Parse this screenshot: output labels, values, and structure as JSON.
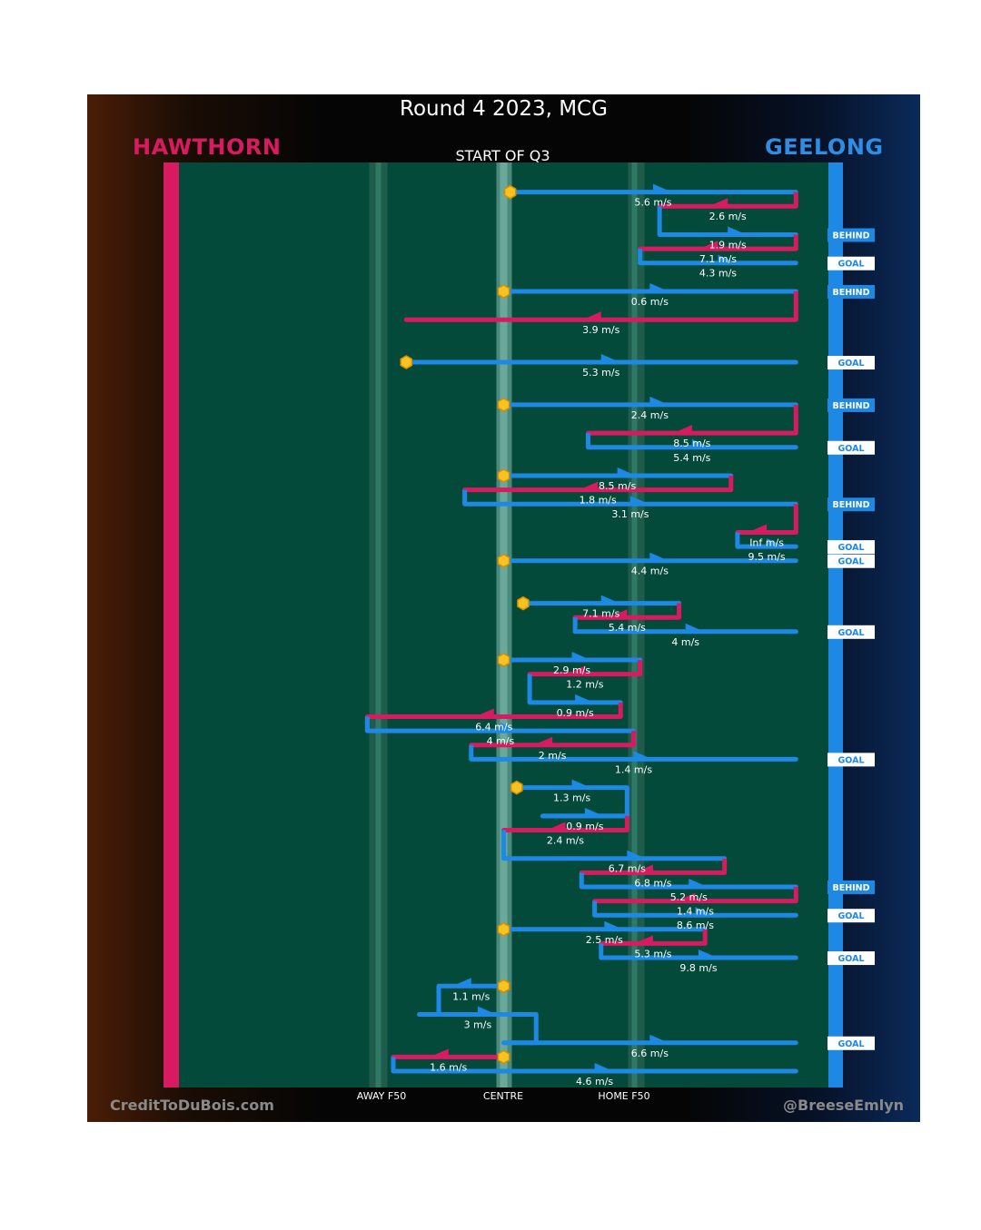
{
  "title": "Round 4 2023, MCG",
  "subtitle": "START OF Q3",
  "teams": {
    "home": "HAWTHORN",
    "away": "GEELONG"
  },
  "colors": {
    "home": "#d81b60",
    "away": "#1e88e5",
    "ball": "#f6c320",
    "field": "#044a3b"
  },
  "zone_labels": {
    "away_f50": "AWAY F50",
    "centre": "CENTRE",
    "home_f50": "HOME F50"
  },
  "credits": {
    "left": "CreditToDuBois.com",
    "right": "@BreeseEmlyn"
  },
  "chart_data": {
    "type": "chain",
    "x_unit": "field position (0 = Hawthorn end, 100 = Geelong end)",
    "markers": {
      "away_f50": 30,
      "centre": 50,
      "home_f50": 70
    },
    "chains": [
      {
        "team": "away",
        "start": 51,
        "end": 95,
        "speed": "5.6 m/s",
        "start_mark": true,
        "y": 10
      },
      {
        "team": "home",
        "start": 95,
        "end": 74,
        "speed": "2.6 m/s",
        "y": 20
      },
      {
        "team": "away",
        "start": 74,
        "end": 95,
        "speed": "1.9 m/s",
        "result": "BEHIND",
        "y": 40
      },
      {
        "team": "home",
        "start": 95,
        "end": 71,
        "speed": "7.1 m/s",
        "y": 50
      },
      {
        "team": "away",
        "start": 71,
        "end": 95,
        "speed": "4.3 m/s",
        "result": "GOAL",
        "y": 60
      },
      {
        "team": "away",
        "start": 50,
        "end": 95,
        "speed": "0.6 m/s",
        "result": "BEHIND",
        "start_mark": true,
        "y": 80
      },
      {
        "team": "home",
        "start": 95,
        "end": 35,
        "speed": "3.9 m/s",
        "y": 100
      },
      {
        "team": "away",
        "start": 35,
        "end": 95,
        "speed": "5.3 m/s",
        "result": "GOAL",
        "start_mark": true,
        "y": 130
      },
      {
        "team": "away",
        "start": 50,
        "end": 95,
        "speed": "2.4 m/s",
        "result": "BEHIND",
        "start_mark": true,
        "y": 160
      },
      {
        "team": "home",
        "start": 95,
        "end": 63,
        "speed": "8.5 m/s",
        "y": 180
      },
      {
        "team": "away",
        "start": 63,
        "end": 95,
        "speed": "5.4 m/s",
        "result": "GOAL",
        "y": 190
      },
      {
        "team": "away",
        "start": 50,
        "end": 85,
        "speed": "8.5 m/s",
        "start_mark": true,
        "y": 210
      },
      {
        "team": "home",
        "start": 85,
        "end": 44,
        "speed": "1.8 m/s",
        "y": 220
      },
      {
        "team": "away",
        "start": 44,
        "end": 95,
        "speed": "3.1 m/s",
        "result": "BEHIND",
        "y": 230
      },
      {
        "team": "home",
        "start": 95,
        "end": 86,
        "speed": "Inf m/s",
        "y": 250
      },
      {
        "team": "away",
        "start": 86,
        "end": 95,
        "speed": "9.5 m/s",
        "result": "GOAL",
        "y": 260
      },
      {
        "team": "away",
        "start": 50,
        "end": 95,
        "speed": "4.4 m/s",
        "result": "GOAL",
        "start_mark": true,
        "y": 270
      },
      {
        "team": "away",
        "start": 53,
        "end": 77,
        "speed": "7.1 m/s",
        "start_mark": true,
        "y": 300
      },
      {
        "team": "home",
        "start": 77,
        "end": 61,
        "speed": "5.4 m/s",
        "y": 310
      },
      {
        "team": "away",
        "start": 61,
        "end": 95,
        "speed": "4 m/s",
        "result": "GOAL",
        "y": 320
      },
      {
        "team": "away",
        "start": 50,
        "end": 71,
        "speed": "2.9 m/s",
        "start_mark": true,
        "y": 340
      },
      {
        "team": "home",
        "start": 71,
        "end": 54,
        "speed": "1.2 m/s",
        "y": 350
      },
      {
        "team": "away",
        "start": 54,
        "end": 68,
        "speed": "0.9 m/s",
        "y": 370
      },
      {
        "team": "home",
        "start": 68,
        "end": 29,
        "speed": "6.4 m/s",
        "y": 380
      },
      {
        "team": "away",
        "start": 29,
        "end": 70,
        "speed": "4 m/s",
        "y": 390
      },
      {
        "team": "home",
        "start": 70,
        "end": 45,
        "speed": "2 m/s",
        "y": 400
      },
      {
        "team": "away",
        "start": 45,
        "end": 95,
        "speed": "1.4 m/s",
        "result": "GOAL",
        "y": 410
      },
      {
        "team": "away",
        "start": 52,
        "end": 69,
        "speed": "1.3 m/s",
        "start_mark": true,
        "y": 430
      },
      {
        "team": "away",
        "start": 56,
        "end": 69,
        "speed": "0.9 m/s",
        "y": 450
      },
      {
        "team": "home",
        "start": 69,
        "end": 50,
        "speed": "2.4 m/s",
        "y": 460
      },
      {
        "team": "away",
        "start": 54,
        "end": 84,
        "speed": "6.7 m/s",
        "y": 480
      },
      {
        "team": "home",
        "start": 84,
        "end": 62,
        "speed": "6.8 m/s",
        "y": 490
      },
      {
        "team": "away",
        "start": 62,
        "end": 95,
        "speed": "5.2 m/s",
        "result": "BEHIND",
        "y": 500
      },
      {
        "team": "home",
        "start": 95,
        "end": 64,
        "speed": "1.4 m/s",
        "y": 510
      },
      {
        "team": "away",
        "start": 64,
        "end": 95,
        "speed": "8.6 m/s",
        "result": "GOAL",
        "y": 520
      },
      {
        "team": "away",
        "start": 50,
        "end": 81,
        "speed": "2.5 m/s",
        "start_mark": true,
        "y": 530
      },
      {
        "team": "home",
        "start": 81,
        "end": 65,
        "speed": "5.3 m/s",
        "y": 540
      },
      {
        "team": "away",
        "start": 65,
        "end": 95,
        "speed": "9.8 m/s",
        "result": "GOAL",
        "y": 550
      },
      {
        "team": "away",
        "start": 50,
        "end": 40,
        "speed": "1.1 m/s",
        "start_mark": true,
        "y": 570
      },
      {
        "team": "away",
        "start": 37,
        "end": 55,
        "speed": "3 m/s",
        "y": 590
      },
      {
        "team": "away",
        "start": 50,
        "end": 95,
        "speed": "6.6 m/s",
        "result": "GOAL",
        "y": 610
      },
      {
        "team": "home",
        "start": 50,
        "end": 33,
        "speed": "1.6 m/s",
        "start_mark": true,
        "y": 620
      },
      {
        "team": "away",
        "start": 33,
        "end": 95,
        "speed": "4.6 m/s",
        "y": 630
      }
    ]
  }
}
